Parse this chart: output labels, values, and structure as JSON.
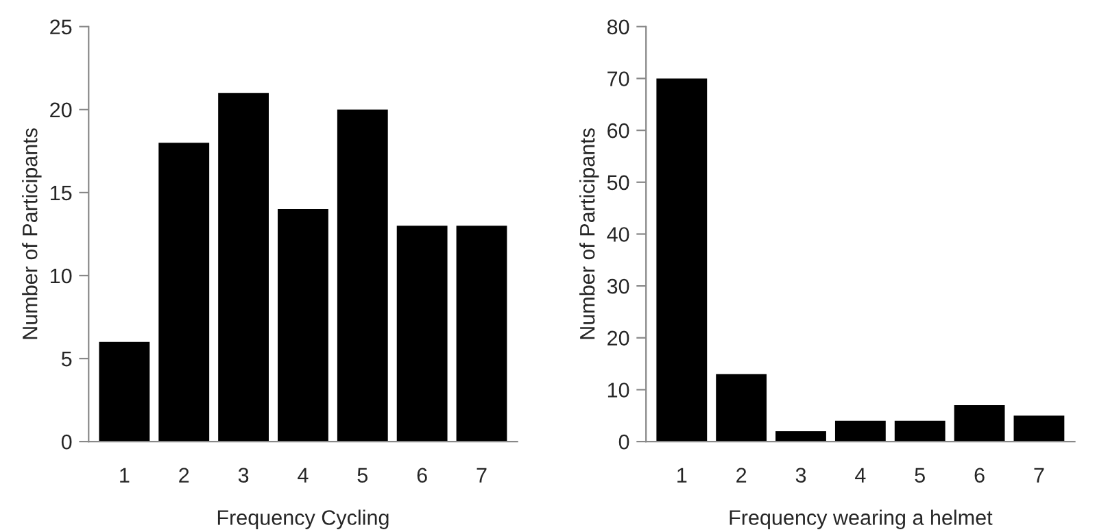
{
  "chart_data": [
    {
      "type": "bar",
      "categories": [
        "1",
        "2",
        "3",
        "4",
        "5",
        "6",
        "7"
      ],
      "values": [
        6,
        18,
        21,
        14,
        20,
        13,
        13
      ],
      "color": "#000000",
      "xlabel": "Frequency Cycling",
      "ylabel": "Number of Participants",
      "ylim": [
        0,
        25
      ],
      "yticks": [
        0,
        5,
        10,
        15,
        20,
        25
      ],
      "grid": false,
      "legend": false
    },
    {
      "type": "bar",
      "categories": [
        "1",
        "2",
        "3",
        "4",
        "5",
        "6",
        "7"
      ],
      "values": [
        70,
        13,
        2,
        4,
        4,
        7,
        5
      ],
      "color": "#000000",
      "xlabel": "Frequency wearing a helmet",
      "ylabel": "Number of Participants",
      "ylim": [
        0,
        80
      ],
      "yticks": [
        0,
        10,
        20,
        30,
        40,
        50,
        60,
        70,
        80
      ],
      "grid": false,
      "legend": false
    }
  ]
}
